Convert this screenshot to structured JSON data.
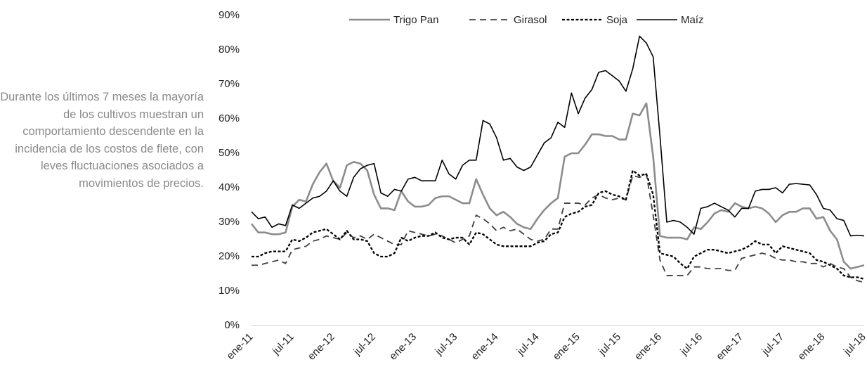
{
  "annotation": "Durante los últimos 7 meses la mayoría de los cultivos muestran un comportamiento descendente en la incidencia de los costos de flete, con leves fluctuaciones asociados a movimientos de precios.",
  "chart_data": {
    "type": "line",
    "categories": [
      "ene-11",
      null,
      null,
      null,
      null,
      null,
      "jul-11",
      null,
      null,
      null,
      null,
      null,
      "ene-12",
      null,
      null,
      null,
      null,
      null,
      "jul-12",
      null,
      null,
      null,
      null,
      null,
      "ene-13",
      null,
      null,
      null,
      null,
      null,
      "jul-13",
      null,
      null,
      null,
      null,
      null,
      "ene-14",
      null,
      null,
      null,
      null,
      null,
      "jul-14",
      null,
      null,
      null,
      null,
      null,
      "ene-15",
      null,
      null,
      null,
      null,
      null,
      "jul-15",
      null,
      null,
      null,
      null,
      null,
      "ene-16",
      null,
      null,
      null,
      null,
      null,
      "jul-16",
      null,
      null,
      null,
      null,
      null,
      "ene-17",
      null,
      null,
      null,
      null,
      null,
      "jul-17",
      null,
      null,
      null,
      null,
      null,
      "ene-18",
      null,
      null,
      null,
      null,
      null,
      "jul-18"
    ],
    "ylim": [
      0,
      90
    ],
    "yticks": [
      {
        "value": 0,
        "label": "0%"
      },
      {
        "value": 10,
        "label": "10%"
      },
      {
        "value": 20,
        "label": "20%"
      },
      {
        "value": 30,
        "label": "30%"
      },
      {
        "value": 40,
        "label": "40%"
      },
      {
        "value": 50,
        "label": "50%"
      },
      {
        "value": 60,
        "label": "60%"
      },
      {
        "value": 70,
        "label": "70%"
      },
      {
        "value": 80,
        "label": "80%"
      },
      {
        "value": 90,
        "label": "90%"
      }
    ],
    "legend": "top",
    "series": [
      {
        "name": "Trigo Pan",
        "color": "#8c8c8c",
        "style": "solid",
        "values": [
          29.5,
          27,
          27,
          26.5,
          26.5,
          27,
          34.5,
          36.5,
          36,
          41,
          44.5,
          47,
          42,
          40,
          46.5,
          47.5,
          47,
          45,
          38,
          34,
          34,
          33.5,
          39,
          36,
          34.5,
          34.5,
          35,
          37,
          37.5,
          37.5,
          36.5,
          35.5,
          35.5,
          42.5,
          38,
          34,
          32,
          33,
          31.5,
          29.5,
          28.5,
          28,
          31,
          33.5,
          35.5,
          37,
          49,
          50,
          50,
          52.5,
          55.5,
          55.5,
          55,
          55,
          54,
          54,
          61.5,
          61,
          64.5,
          49,
          26,
          25.5,
          25.5,
          25.5,
          25,
          28.5,
          28,
          30,
          32.5,
          33.5,
          33,
          35.5,
          34.5,
          34,
          34.5,
          34,
          32.5,
          30,
          32,
          33,
          33,
          34,
          34,
          31,
          31.5,
          27.5,
          25,
          18.5,
          16.5,
          17,
          17.5
        ]
      },
      {
        "name": "Girasol",
        "color": "#404040",
        "style": "dashed",
        "values": [
          17.5,
          17.5,
          18,
          18.5,
          19,
          18,
          22,
          22.5,
          23,
          24.5,
          25,
          26,
          25.5,
          25,
          27,
          25.5,
          26,
          25,
          26.5,
          25.5,
          24.5,
          23.5,
          23.5,
          27.5,
          27,
          26.5,
          26,
          26.5,
          26,
          25,
          24,
          25,
          26,
          32,
          31,
          29.5,
          27.5,
          28.5,
          27.5,
          28,
          26.5,
          25,
          24.5,
          25,
          28,
          28,
          35.5,
          35.5,
          35.5,
          35,
          37,
          38,
          37,
          36.5,
          37,
          36.5,
          43.5,
          43,
          44,
          32,
          19,
          14.5,
          14.5,
          14.5,
          14.5,
          17,
          17,
          16.5,
          16.5,
          16.5,
          16,
          16,
          19.5,
          20,
          20.5,
          21,
          20.5,
          19.5,
          19,
          19,
          18.5,
          18.5,
          18,
          18,
          17,
          18,
          17,
          16.5,
          14,
          13,
          12.5
        ]
      },
      {
        "name": "Soja",
        "color": "#000000",
        "style": "dotted",
        "values": [
          20,
          20,
          21,
          21.5,
          21.5,
          21.5,
          25,
          24.5,
          25.5,
          27,
          27.5,
          28,
          26.5,
          25,
          27.5,
          25,
          25,
          24.5,
          21,
          20,
          20,
          21,
          25.5,
          24.5,
          25.5,
          26,
          26,
          27,
          25.5,
          25,
          25.5,
          25.5,
          23.5,
          27,
          26.5,
          25,
          23.5,
          23,
          23,
          23,
          23,
          23,
          24,
          24.5,
          26.5,
          27,
          31.5,
          32.5,
          33,
          34.5,
          35,
          38.5,
          39,
          38,
          37.5,
          36.5,
          45,
          43.5,
          44,
          38,
          21,
          20.5,
          20,
          18,
          16.5,
          20,
          21,
          22,
          22,
          21.5,
          21,
          21.5,
          22,
          23,
          24.5,
          23.5,
          23.5,
          21,
          23,
          22.5,
          22,
          21.5,
          21,
          19,
          18.5,
          17.5,
          16.5,
          14.5,
          14,
          14,
          13.5
        ]
      },
      {
        "name": "Maíz",
        "color": "#000000",
        "style": "solid",
        "values": [
          33,
          31,
          31.5,
          28.5,
          29.5,
          29,
          35,
          34,
          35.5,
          37,
          37.5,
          39,
          42,
          39,
          37.5,
          43,
          45.5,
          46.5,
          47,
          38.5,
          37.5,
          39.5,
          39,
          42.5,
          43,
          42,
          42,
          42,
          48,
          44,
          42.5,
          46.5,
          48,
          48,
          59.5,
          58.5,
          54.5,
          48,
          48.5,
          46,
          45,
          46,
          49.5,
          53,
          54.5,
          59,
          57.5,
          67.5,
          61.5,
          66,
          68.5,
          73.5,
          74,
          72.5,
          71,
          68,
          74.5,
          84,
          82,
          78,
          55,
          30,
          30.5,
          30,
          28.5,
          26.5,
          34,
          34.5,
          35.5,
          34.5,
          33.5,
          31.5,
          34,
          34,
          39,
          39.5,
          39.5,
          40,
          38.5,
          41,
          41.2,
          41,
          40.8,
          38,
          34,
          33.5,
          31,
          30.5,
          26,
          26.2,
          26
        ]
      }
    ]
  }
}
